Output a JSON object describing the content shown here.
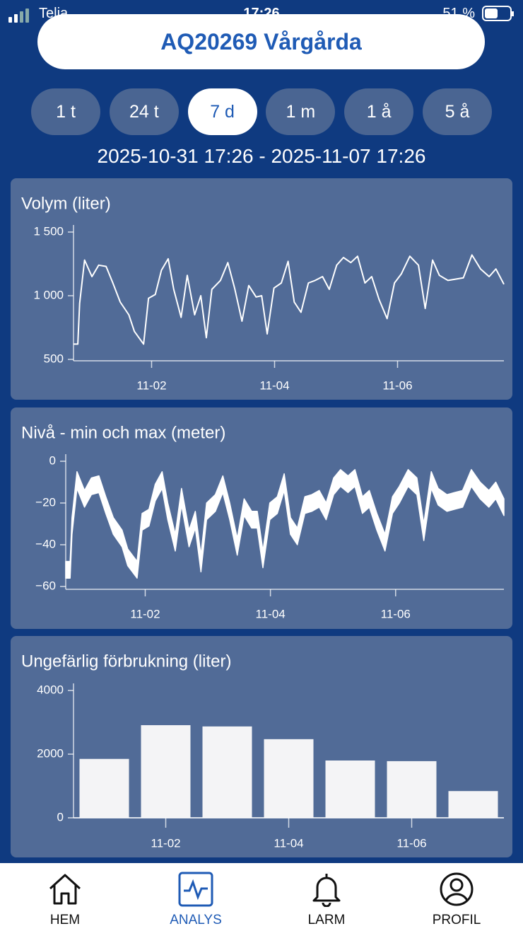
{
  "status_bar": {
    "carrier": "Telia",
    "time": "17:26",
    "battery": "51 %"
  },
  "header": {
    "title": "AQ20269 Vårgårda"
  },
  "tabs": {
    "items": [
      "1 t",
      "24 t",
      "7 d",
      "1 m",
      "1 å",
      "5 å"
    ],
    "active": 2
  },
  "date_range": "2025-10-31 17:26 - 2025-11-07 17:26",
  "chart_data": [
    {
      "type": "line",
      "title": "Volym (liter)",
      "color": "#ffffff",
      "x": [
        0,
        0.07,
        0.1,
        0.18,
        0.3,
        0.41,
        0.53,
        0.64,
        0.76,
        0.9,
        0.99,
        1.14,
        1.22,
        1.33,
        1.43,
        1.54,
        1.63,
        1.75,
        1.85,
        1.97,
        2.07,
        2.16,
        2.25,
        2.39,
        2.51,
        2.62,
        2.74,
        2.85,
        2.97,
        3.06,
        3.15,
        3.26,
        3.38,
        3.49,
        3.59,
        3.7,
        3.82,
        3.93,
        4.05,
        4.16,
        4.28,
        4.39,
        4.51,
        4.62,
        4.74,
        4.85,
        4.97,
        5.1,
        5.22,
        5.33,
        5.47,
        5.61,
        5.72,
        5.84,
        5.95,
        6.09,
        6.21,
        6.34,
        6.48,
        6.62,
        6.76,
        6.87,
        7.0
      ],
      "values": [
        620,
        620,
        940,
        1280,
        1150,
        1240,
        1230,
        1100,
        950,
        850,
        720,
        620,
        980,
        1010,
        1200,
        1290,
        1050,
        830,
        1160,
        850,
        1000,
        670,
        1050,
        1120,
        1260,
        1060,
        800,
        1080,
        990,
        1000,
        700,
        1060,
        1100,
        1270,
        950,
        870,
        1100,
        1120,
        1150,
        1050,
        1240,
        1300,
        1260,
        1310,
        1100,
        1150,
        970,
        820,
        1100,
        1170,
        1310,
        1240,
        900,
        1280,
        1160,
        1120,
        1130,
        1140,
        1320,
        1210,
        1150,
        1210,
        1090
      ],
      "xlim": [
        0,
        7
      ],
      "xticks": [
        {
          "value": 1.27,
          "label": "11-02"
        },
        {
          "value": 3.27,
          "label": "11-04"
        },
        {
          "value": 5.27,
          "label": "11-06"
        }
      ],
      "ylim": [
        500,
        1500
      ],
      "yticks": [
        500,
        {
          "value": 1000,
          "label": "1 000"
        },
        {
          "value": 1500,
          "label": "1 500"
        }
      ]
    },
    {
      "type": "area",
      "title": "Nivå - min och max (meter)",
      "x": [
        0,
        0.07,
        0.1,
        0.18,
        0.3,
        0.41,
        0.53,
        0.64,
        0.76,
        0.9,
        0.99,
        1.14,
        1.22,
        1.33,
        1.43,
        1.54,
        1.63,
        1.75,
        1.85,
        1.97,
        2.07,
        2.16,
        2.25,
        2.39,
        2.51,
        2.62,
        2.74,
        2.85,
        2.97,
        3.06,
        3.15,
        3.26,
        3.38,
        3.49,
        3.59,
        3.7,
        3.82,
        3.93,
        4.05,
        4.16,
        4.28,
        4.39,
        4.51,
        4.62,
        4.74,
        4.85,
        4.97,
        5.1,
        5.22,
        5.33,
        5.47,
        5.61,
        5.72,
        5.84,
        5.95,
        6.09,
        6.21,
        6.34,
        6.48,
        6.62,
        6.76,
        6.87,
        7.0
      ],
      "series": [
        {
          "color": "#ffffff",
          "values": [
            -48,
            -48,
            -27,
            -5,
            -14,
            -8,
            -7,
            -17,
            -27,
            -33,
            -42,
            -48,
            -25,
            -23,
            -11,
            -5,
            -20,
            -35,
            -13,
            -33,
            -24,
            -45,
            -20,
            -16,
            -7,
            -20,
            -37,
            -18,
            -24,
            -24,
            -43,
            -20,
            -17,
            -6,
            -27,
            -32,
            -17,
            -16,
            -14,
            -20,
            -8,
            -4,
            -7,
            -4,
            -17,
            -14,
            -25,
            -35,
            -17,
            -12,
            -4,
            -8,
            -30,
            -5,
            -13,
            -16,
            -15,
            -14,
            -4,
            -10,
            -14,
            -10,
            -18
          ]
        },
        {
          "color": "#ffffff",
          "values": [
            -56,
            -56,
            -35,
            -13,
            -22,
            -16,
            -15,
            -25,
            -35,
            -41,
            -50,
            -56,
            -33,
            -31,
            -19,
            -13,
            -28,
            -43,
            -21,
            -41,
            -32,
            -53,
            -28,
            -24,
            -15,
            -28,
            -45,
            -26,
            -32,
            -32,
            -51,
            -28,
            -25,
            -14,
            -35,
            -40,
            -25,
            -24,
            -22,
            -28,
            -16,
            -12,
            -15,
            -12,
            -25,
            -22,
            -33,
            -43,
            -25,
            -20,
            -12,
            -16,
            -38,
            -13,
            -21,
            -24,
            -23,
            -22,
            -12,
            -18,
            -22,
            -18,
            -26
          ]
        }
      ],
      "xlim": [
        0,
        7
      ],
      "xticks": [
        {
          "value": 1.27,
          "label": "11-02"
        },
        {
          "value": 3.27,
          "label": "11-04"
        },
        {
          "value": 5.27,
          "label": "11-06"
        }
      ],
      "ylim": [
        -60,
        0
      ],
      "yticks": [
        {
          "value": -60,
          "label": "−60"
        },
        {
          "value": -40,
          "label": "−40"
        },
        {
          "value": -20,
          "label": "−20"
        },
        0
      ]
    },
    {
      "type": "bar",
      "title": "Ungefärlig förbrukning (liter)",
      "color": "#f4f4f6",
      "categories": [
        null,
        "11-02",
        null,
        "11-04",
        null,
        "11-06",
        null
      ],
      "values": [
        1850,
        2910,
        2870,
        2470,
        1800,
        1780,
        840
      ],
      "ylim": [
        0,
        4000
      ],
      "yticks": [
        0,
        2000,
        4000
      ]
    }
  ],
  "nav": {
    "items": [
      "HEM",
      "ANALYS",
      "LARM",
      "PROFIL"
    ],
    "active": 1
  }
}
